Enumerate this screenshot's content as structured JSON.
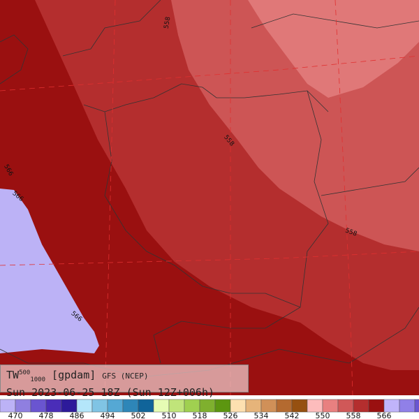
{
  "title": {
    "var": "TW",
    "sup": "500",
    "sub": "1000",
    "unit": "[gpdam]",
    "model": "GFS (NCEP)",
    "time": "Sun 2023-06-25 18Z (Sun 12Z+006h)"
  },
  "contour_labels": [
    "558",
    "558",
    "566",
    "566",
    "566",
    "558"
  ],
  "colorbar": {
    "colors": [
      "#bcb2f6",
      "#8f7fe0",
      "#6a55d0",
      "#4a2db8",
      "#2d1a9a",
      "#b4e6fa",
      "#80c4e4",
      "#55a8d4",
      "#2e86b8",
      "#10649a",
      "#e6fcb4",
      "#c0e47a",
      "#a0d050",
      "#7fb02e",
      "#5c9610",
      "#fde0b0",
      "#e6b47a",
      "#d09058",
      "#b46a30",
      "#965010",
      "#fdbcbc",
      "#e88080",
      "#d05858",
      "#b42e2e",
      "#9a1010",
      "#c0b4fa",
      "#9080e8",
      "#6a55d0"
    ],
    "labels": [
      470,
      478,
      486,
      494,
      502,
      510,
      518,
      526,
      534,
      542,
      550,
      558,
      566
    ]
  }
}
